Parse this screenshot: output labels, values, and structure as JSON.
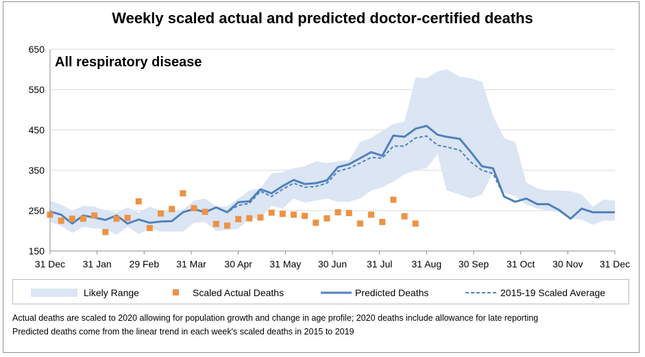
{
  "chart_data": {
    "type": "line",
    "title": "Weekly scaled actual and predicted doctor-certified deaths",
    "subtitle": "All respiratory disease",
    "ylim": [
      150,
      650
    ],
    "yticks": [
      150,
      250,
      350,
      450,
      550,
      650
    ],
    "xtick_labels": [
      "31 Dec",
      "31 Jan",
      "29 Feb",
      "31 Mar",
      "30 Apr",
      "31 May",
      "30 Jun",
      "31 Jul",
      "31 Aug",
      "30 Sep",
      "31 Oct",
      "30 Nov",
      "31 Dec"
    ],
    "weeks": [
      1,
      2,
      3,
      4,
      5,
      6,
      7,
      8,
      9,
      10,
      11,
      12,
      13,
      14,
      15,
      16,
      17,
      18,
      19,
      20,
      21,
      22,
      23,
      24,
      25,
      26,
      27,
      28,
      29,
      30,
      31,
      32,
      33,
      34,
      35,
      36,
      36.8,
      38,
      39,
      40,
      41,
      42,
      43,
      44,
      45,
      46,
      47,
      48,
      49,
      50,
      51,
      52
    ],
    "series": [
      {
        "name": "Likely Range",
        "style": "band",
        "color": "#dbe5f3",
        "lower": [
          222,
          212,
          195,
          210,
          205,
          205,
          190,
          210,
          192,
          205,
          198,
          198,
          198,
          220,
          222,
          200,
          202,
          205,
          230,
          232,
          262,
          255,
          280,
          270,
          275,
          280,
          272,
          272,
          280,
          300,
          308,
          322,
          340,
          350,
          355,
          390,
          300,
          290,
          280,
          290,
          345,
          295,
          285,
          265,
          255,
          250,
          245,
          230,
          228,
          215,
          225,
          225
        ],
        "upper": [
          275,
          265,
          250,
          262,
          260,
          250,
          245,
          258,
          245,
          260,
          250,
          250,
          252,
          275,
          280,
          260,
          260,
          280,
          300,
          305,
          342,
          345,
          355,
          360,
          372,
          368,
          372,
          375,
          420,
          430,
          448,
          465,
          470,
          580,
          578,
          595,
          600,
          582,
          578,
          570,
          485,
          430,
          420,
          320,
          305,
          300,
          300,
          298,
          290,
          260,
          278,
          275
        ]
      },
      {
        "name": "Scaled Actual Deaths",
        "style": "markers",
        "color": "#ed9245",
        "x": [
          1,
          2,
          3,
          4,
          5,
          6,
          7,
          8,
          9,
          10,
          11,
          12,
          13,
          14,
          15,
          16,
          17,
          18,
          19,
          20,
          21,
          22,
          23,
          24,
          25,
          26,
          27,
          28,
          29,
          30,
          31,
          32,
          33,
          34,
          35,
          36
        ],
        "values": [
          240,
          225,
          230,
          230,
          238,
          197,
          230,
          232,
          273,
          207,
          243,
          254,
          293,
          256,
          247,
          217,
          213,
          229,
          231,
          233,
          245,
          242,
          240,
          237,
          220,
          231,
          246,
          244,
          218,
          240,
          222,
          277,
          236,
          218,
          null,
          null
        ]
      },
      {
        "name": "Predicted Deaths",
        "style": "solid",
        "color": "#4f81bd",
        "values": [
          248,
          240,
          218,
          238,
          233,
          227,
          238,
          218,
          228,
          220,
          223,
          224,
          246,
          254,
          246,
          258,
          246,
          271,
          273,
          303,
          293,
          311,
          326,
          316,
          318,
          325,
          358,
          365,
          380,
          395,
          386,
          436,
          433,
          453,
          460,
          438,
          433,
          428,
          395,
          360,
          355,
          285,
          272,
          280,
          266,
          266,
          251,
          230,
          255,
          246,
          246,
          246
        ]
      },
      {
        "name": "2015-19 Scaled Average",
        "style": "dashed",
        "color": "#4f81bd",
        "values": [
          248,
          240,
          218,
          238,
          233,
          227,
          238,
          218,
          228,
          220,
          223,
          224,
          246,
          254,
          246,
          258,
          246,
          263,
          268,
          298,
          285,
          303,
          318,
          308,
          310,
          318,
          348,
          355,
          368,
          382,
          380,
          410,
          410,
          430,
          435,
          412,
          408,
          400,
          370,
          350,
          342,
          285,
          272,
          280,
          266,
          266,
          251,
          230,
          255,
          246,
          246,
          246
        ]
      }
    ],
    "legend": {
      "placement": "bottom",
      "entries": [
        "Likely Range",
        "Scaled Actual Deaths",
        "Predicted Deaths",
        "2015-19 Scaled Average"
      ]
    },
    "grid": "horizontal",
    "notes": [
      "Actual deaths are scaled to 2020 allowing for population growth and change in age profile; 2020 deaths include allowance for late reporting",
      "Predicted deaths come from the linear trend in each week's scaled deaths in 2015 to 2019"
    ]
  }
}
